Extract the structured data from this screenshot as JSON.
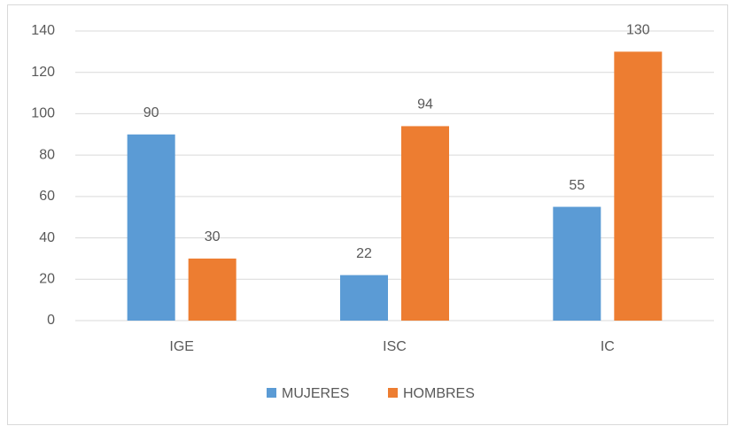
{
  "chart_data": {
    "type": "bar",
    "categories": [
      "IGE",
      "ISC",
      "IC"
    ],
    "series": [
      {
        "name": "MUJERES",
        "color": "#5b9bd5",
        "values": [
          90,
          22,
          55
        ]
      },
      {
        "name": "HOMBRES",
        "color": "#ed7d31",
        "values": [
          30,
          94,
          130
        ]
      }
    ],
    "ylim": [
      0,
      140
    ],
    "yticks": [
      0,
      20,
      40,
      60,
      80,
      100,
      120,
      140
    ],
    "grid": true,
    "legend": "bottom",
    "data_labels": true
  }
}
